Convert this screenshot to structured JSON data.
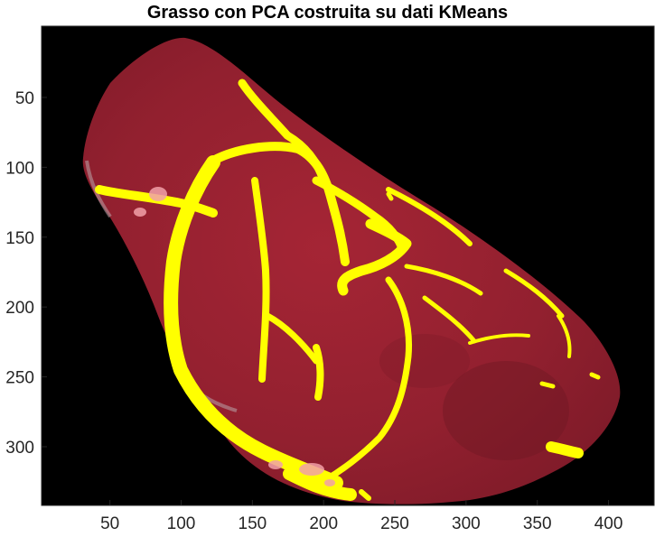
{
  "figure": {
    "title": "Grasso con PCA costruita su dati KMeans"
  },
  "axes": {
    "x_ticks": [
      "50",
      "100",
      "150",
      "200",
      "250",
      "300",
      "350",
      "400"
    ],
    "y_ticks": [
      "50",
      "100",
      "150",
      "200",
      "250",
      "300"
    ],
    "x_range": [
      2,
      432
    ],
    "y_range": [
      -1,
      342
    ],
    "y_direction": "reversed"
  },
  "image": {
    "subject": "segmented meat cut with highlighted fat regions",
    "background_color": "#000000",
    "meat_color": "#9a1f2e",
    "fat_overlay_color": "#ffff00",
    "residual_fat_color": "#f2a0a8"
  }
}
